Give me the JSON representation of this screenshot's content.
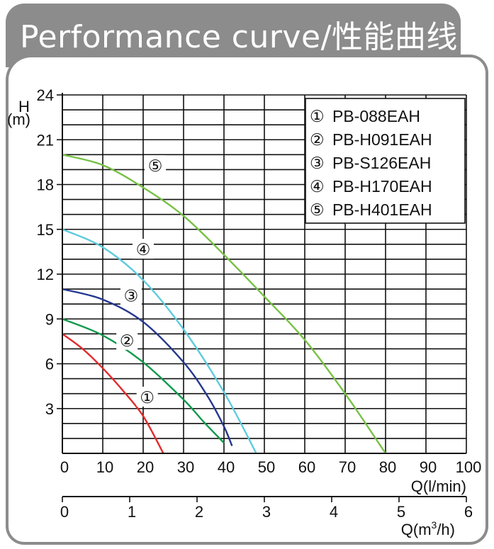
{
  "header": {
    "title": "Performance curve/性能曲线"
  },
  "chart_data": {
    "type": "line",
    "title": "Performance curve/性能曲线",
    "ylabel": "H",
    "yunit": "(m)",
    "xlabel": "Q(l/min)",
    "x2label": "Q(m",
    "x2label_sup": "3",
    "x2label_tail": "/h)",
    "xlim": [
      0,
      100
    ],
    "ylim": [
      0,
      24
    ],
    "x2lim": [
      0,
      6
    ],
    "xticks": [
      "0",
      "10",
      "20",
      "30",
      "40",
      "50",
      "60",
      "70",
      "80",
      "90",
      "100"
    ],
    "yticks": [
      "3",
      "6",
      "9",
      "12",
      "15",
      "18",
      "21",
      "24"
    ],
    "x2ticks": [
      "0",
      "1",
      "2",
      "3",
      "4",
      "5",
      "6"
    ],
    "grid": true,
    "legend_position": "top-right",
    "series": [
      {
        "marker": "①",
        "name": "PB-088EAH",
        "color": "#e32b2b",
        "label_at": [
          21,
          3.8
        ],
        "points": [
          [
            0,
            8
          ],
          [
            5,
            7
          ],
          [
            10,
            5.7
          ],
          [
            15,
            4.2
          ],
          [
            20,
            2.5
          ],
          [
            25,
            0
          ]
        ]
      },
      {
        "marker": "②",
        "name": "PB-H091EAH",
        "color": "#0e9a4c",
        "label_at": [
          16,
          7.6
        ],
        "points": [
          [
            0,
            9
          ],
          [
            10,
            7.9
          ],
          [
            20,
            6.1
          ],
          [
            30,
            3.6
          ],
          [
            35,
            2.1
          ],
          [
            40,
            0.7
          ]
        ]
      },
      {
        "marker": "③",
        "name": "PB-S126EAH",
        "color": "#24378f",
        "label_at": [
          17,
          10.6
        ],
        "points": [
          [
            0,
            11
          ],
          [
            10,
            10.3
          ],
          [
            20,
            8.8
          ],
          [
            30,
            6.1
          ],
          [
            36,
            3.8
          ],
          [
            40,
            1.8
          ],
          [
            42,
            0.5
          ]
        ]
      },
      {
        "marker": "④",
        "name": "PB-H170EAH",
        "color": "#5ecbdc",
        "label_at": [
          20,
          13.7
        ],
        "points": [
          [
            0,
            15
          ],
          [
            10,
            13.8
          ],
          [
            20,
            11.6
          ],
          [
            30,
            8.3
          ],
          [
            40,
            4.1
          ],
          [
            48,
            0
          ]
        ]
      },
      {
        "marker": "⑤",
        "name": "PB-H401EAH",
        "color": "#77c045",
        "label_at": [
          23,
          19.3
        ],
        "points": [
          [
            0,
            20
          ],
          [
            10,
            19.3
          ],
          [
            20,
            17.8
          ],
          [
            30,
            15.9
          ],
          [
            40,
            13.3
          ],
          [
            50,
            10.5
          ],
          [
            60,
            7.6
          ],
          [
            70,
            4
          ],
          [
            80,
            0
          ]
        ]
      }
    ]
  }
}
